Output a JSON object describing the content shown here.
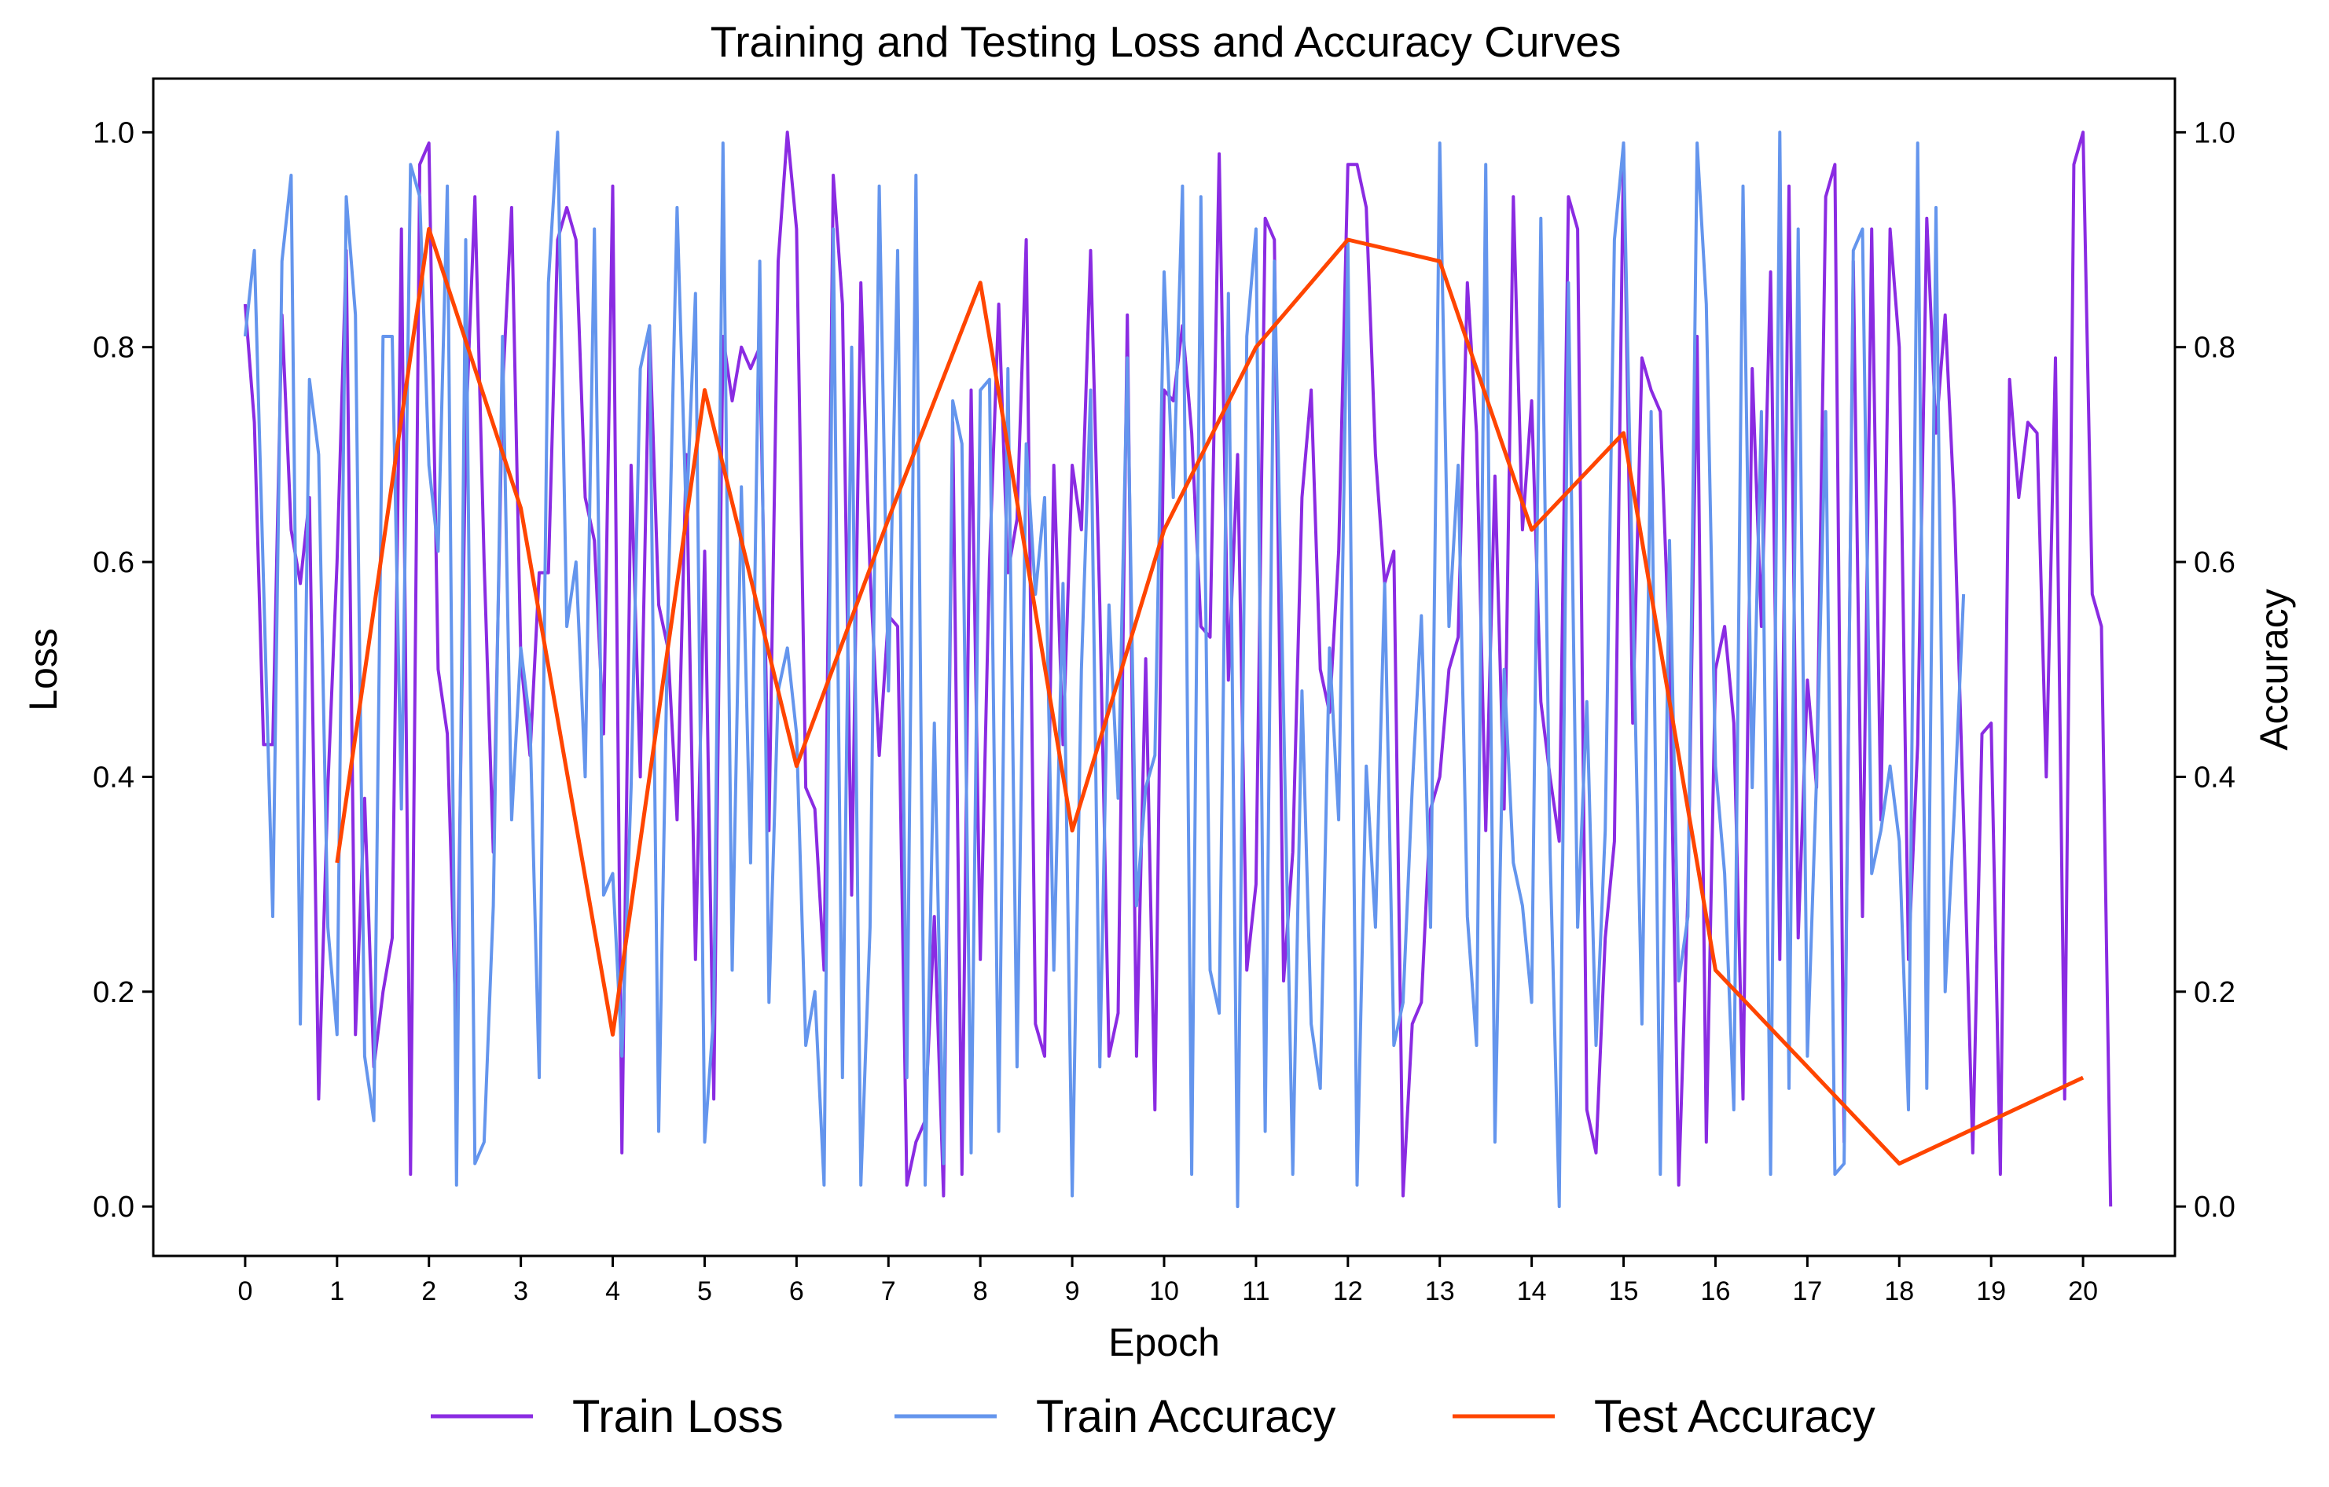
{
  "chart_data": {
    "type": "line",
    "title": "Training and Testing Loss and Accuracy Curves",
    "xlabel": "Epoch",
    "ylabel_left": "Loss",
    "ylabel_right": "Accuracy",
    "xlim": [
      -1,
      21
    ],
    "ylim_left": [
      -0.046,
      1.05
    ],
    "ylim_right": [
      -0.046,
      1.05
    ],
    "xticks": [
      0,
      1,
      2,
      3,
      4,
      5,
      6,
      7,
      8,
      9,
      10,
      11,
      12,
      13,
      14,
      15,
      16,
      17,
      18,
      19,
      20
    ],
    "yticks_left": [
      "0.0",
      "0.2",
      "0.4",
      "0.6",
      "0.8",
      "1.0"
    ],
    "yticks_right": [
      "0.0",
      "0.2",
      "0.4",
      "0.6",
      "0.8",
      "1.0"
    ],
    "grid": false,
    "legend_position": "bottom-center",
    "colors": {
      "train_loss": "#8a2be2",
      "train_accuracy": "#6495ed",
      "test_accuracy": "#ff4500"
    },
    "series": [
      {
        "name": "Train Loss",
        "axis": "left",
        "x_step": 0.1,
        "y": [
          0.84,
          0.73,
          0.43,
          0.43,
          0.83,
          0.63,
          0.58,
          0.66,
          0.1,
          0.39,
          0.6,
          0.89,
          0.16,
          0.38,
          0.13,
          0.2,
          0.25,
          0.91,
          0.03,
          0.97,
          0.99,
          0.5,
          0.44,
          0.15,
          0.72,
          0.94,
          0.6,
          0.33,
          0.76,
          0.93,
          0.51,
          0.42,
          0.59,
          0.59,
          0.9,
          0.93,
          0.9,
          0.66,
          0.62,
          0.44,
          0.95,
          0.05,
          0.69,
          0.4,
          0.82,
          0.56,
          0.52,
          0.36,
          0.7,
          0.23,
          0.61,
          0.1,
          0.81,
          0.75,
          0.8,
          0.78,
          0.8,
          0.35,
          0.88,
          1.0,
          0.91,
          0.39,
          0.37,
          0.22,
          0.96,
          0.84,
          0.29,
          0.86,
          0.59,
          0.42,
          0.55,
          0.54,
          0.02,
          0.06,
          0.08,
          0.27,
          0.01,
          0.73,
          0.03,
          0.76,
          0.23,
          0.6,
          0.84,
          0.59,
          0.64,
          0.9,
          0.17,
          0.14,
          0.69,
          0.43,
          0.69,
          0.63,
          0.89,
          0.56,
          0.14,
          0.18,
          0.83,
          0.14,
          0.51,
          0.09,
          0.76,
          0.75,
          0.82,
          0.72,
          0.54,
          0.53,
          0.98,
          0.49,
          0.7,
          0.22,
          0.3,
          0.92,
          0.9,
          0.21,
          0.33,
          0.66,
          0.76,
          0.5,
          0.46,
          0.61,
          0.97,
          0.97,
          0.93,
          0.7,
          0.58,
          0.61,
          0.01,
          0.17,
          0.19,
          0.37,
          0.4,
          0.5,
          0.53,
          0.86,
          0.72,
          0.35,
          0.68,
          0.37,
          0.94,
          0.63,
          0.75,
          0.47,
          0.4,
          0.34,
          0.94,
          0.91,
          0.09,
          0.05,
          0.25,
          0.34,
          0.99,
          0.45,
          0.79,
          0.76,
          0.74,
          0.51,
          0.02,
          0.29,
          0.81,
          0.06,
          0.5,
          0.54,
          0.45,
          0.1,
          0.78,
          0.54,
          0.87,
          0.23,
          0.95,
          0.25,
          0.49,
          0.39,
          0.94,
          0.97,
          0.06,
          0.88,
          0.27,
          0.91,
          0.36,
          0.91,
          0.8,
          0.23,
          0.43,
          0.92,
          0.72,
          0.83,
          0.65,
          0.36,
          0.05,
          0.44,
          0.45,
          0.03,
          0.77,
          0.66,
          0.73,
          0.72,
          0.4,
          0.79,
          0.1,
          0.97,
          1.0,
          0.57,
          0.54,
          0.0
        ]
      },
      {
        "name": "Train Accuracy",
        "axis": "right",
        "x_step": 0.1,
        "y": [
          0.81,
          0.89,
          0.58,
          0.27,
          0.88,
          0.96,
          0.17,
          0.77,
          0.7,
          0.26,
          0.16,
          0.94,
          0.83,
          0.14,
          0.08,
          0.81,
          0.81,
          0.37,
          0.97,
          0.94,
          0.69,
          0.61,
          0.95,
          0.02,
          0.9,
          0.04,
          0.06,
          0.28,
          0.81,
          0.36,
          0.52,
          0.45,
          0.12,
          0.86,
          1.0,
          0.54,
          0.6,
          0.4,
          0.91,
          0.29,
          0.31,
          0.14,
          0.39,
          0.78,
          0.82,
          0.07,
          0.55,
          0.93,
          0.64,
          0.85,
          0.06,
          0.18,
          0.99,
          0.22,
          0.67,
          0.32,
          0.88,
          0.19,
          0.48,
          0.52,
          0.44,
          0.15,
          0.2,
          0.02,
          0.91,
          0.12,
          0.8,
          0.02,
          0.26,
          0.95,
          0.48,
          0.89,
          0.12,
          0.96,
          0.02,
          0.45,
          0.04,
          0.75,
          0.71,
          0.05,
          0.76,
          0.77,
          0.07,
          0.78,
          0.13,
          0.71,
          0.57,
          0.66,
          0.22,
          0.58,
          0.01,
          0.5,
          0.76,
          0.13,
          0.56,
          0.38,
          0.79,
          0.28,
          0.39,
          0.42,
          0.87,
          0.66,
          0.95,
          0.03,
          0.94,
          0.22,
          0.18,
          0.85,
          0.0,
          0.81,
          0.91,
          0.07,
          0.88,
          0.46,
          0.03,
          0.48,
          0.17,
          0.11,
          0.52,
          0.36,
          0.9,
          0.02,
          0.41,
          0.26,
          0.58,
          0.15,
          0.19,
          0.39,
          0.55,
          0.26,
          0.99,
          0.54,
          0.69,
          0.27,
          0.15,
          0.97,
          0.06,
          0.5,
          0.32,
          0.28,
          0.19,
          0.92,
          0.33,
          0.0,
          0.86,
          0.26,
          0.47,
          0.15,
          0.35,
          0.9,
          0.99,
          0.57,
          0.17,
          0.74,
          0.03,
          0.62,
          0.21,
          0.27,
          0.99,
          0.84,
          0.41,
          0.31,
          0.09,
          0.95,
          0.39,
          0.74,
          0.03,
          1.0,
          0.11,
          0.91,
          0.14,
          0.4,
          0.74,
          0.03,
          0.04,
          0.89,
          0.91,
          0.31,
          0.35,
          0.41,
          0.34,
          0.09,
          0.99,
          0.11,
          0.93,
          0.2,
          0.37,
          0.57
        ]
      },
      {
        "name": "Test Accuracy",
        "axis": "right",
        "x": [
          1,
          2,
          3,
          4,
          5,
          6,
          7,
          8,
          9,
          10,
          11,
          12,
          13,
          14,
          15,
          16,
          17,
          18,
          19,
          20
        ],
        "y": [
          0.32,
          0.91,
          0.65,
          0.16,
          0.76,
          0.41,
          0.64,
          0.86,
          0.35,
          0.63,
          0.8,
          0.9,
          0.88,
          0.63,
          0.72,
          0.22,
          0.13,
          0.04,
          0.08,
          0.12
        ]
      }
    ]
  }
}
